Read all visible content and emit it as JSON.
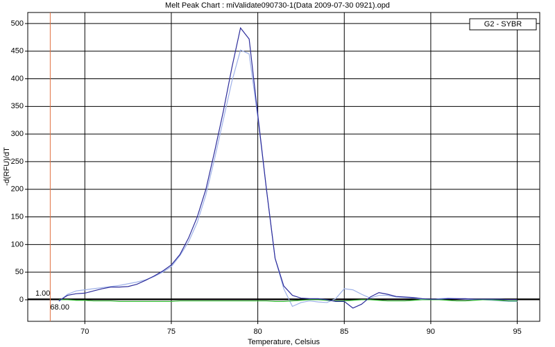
{
  "chart_data": {
    "type": "line",
    "title": "Melt Peak Chart : miValidate090730-1(Data 2009-07-30 0921).opd",
    "x_label": "Temperature, Celsius",
    "y_label": "-d(RFU)/dT",
    "legend": "G2 - SYBR",
    "xlim": [
      66.7,
      96.3
    ],
    "ylim": [
      -39,
      520
    ],
    "xticks": [
      70,
      75,
      80,
      85,
      90,
      95
    ],
    "yticks": [
      0,
      50,
      100,
      150,
      200,
      250,
      300,
      350,
      400,
      450,
      500
    ],
    "grid": true,
    "threshold": {
      "value": 1,
      "label": "1.00"
    },
    "start_line": {
      "value": 68,
      "label": "68.00"
    },
    "x": [
      68.5,
      69,
      69.5,
      70,
      70.5,
      71,
      71.5,
      72,
      72.5,
      73,
      73.5,
      74,
      74.5,
      75,
      75.5,
      76,
      76.5,
      77,
      77.5,
      78,
      78.5,
      79,
      79.5,
      80,
      80.5,
      81,
      81.5,
      82,
      82.5,
      83,
      83.5,
      84,
      84.5,
      85,
      85.5,
      86,
      86.5,
      87,
      87.5,
      88,
      88.5,
      89,
      89.5,
      90,
      90.5,
      91,
      91.5,
      92,
      92.5,
      93,
      93.5,
      94,
      94.5,
      95
    ],
    "series": [
      {
        "color": "#9db0e8",
        "values": [
          -3,
          10,
          16,
          18,
          20,
          22,
          24,
          26,
          29,
          32,
          36,
          42,
          50,
          60,
          80,
          105,
          140,
          190,
          255,
          325,
          395,
          452,
          445,
          330,
          200,
          75,
          20,
          -12,
          -5,
          -2,
          -4,
          -5,
          2,
          20,
          18,
          10,
          3,
          8,
          8,
          5,
          4,
          3,
          1,
          0,
          2,
          3,
          2,
          1,
          0,
          0,
          -1,
          -2,
          -3,
          -3
        ]
      },
      {
        "color": "#33bb33",
        "values": [
          0,
          0,
          -1,
          -1,
          -2,
          -2,
          -2,
          -3,
          -3,
          -3,
          -3,
          -3,
          -3,
          -3,
          -2,
          -2,
          -2,
          -2,
          -2,
          -2,
          -2,
          -2,
          -2,
          -2,
          -2,
          -3,
          -3,
          -2,
          -1,
          0,
          0,
          -1,
          -2,
          -2,
          -1,
          0,
          0,
          -1,
          -2,
          -2,
          -2,
          -1,
          0,
          0,
          0,
          -1,
          -2,
          -2,
          -1,
          0,
          0,
          -1,
          -2,
          -2
        ]
      },
      {
        "color": "#2b2b9a",
        "values": [
          -2,
          8,
          11,
          12,
          16,
          20,
          23,
          23,
          24,
          28,
          35,
          43,
          52,
          63,
          82,
          112,
          150,
          200,
          268,
          340,
          420,
          492,
          472,
          335,
          200,
          75,
          25,
          8,
          3,
          2,
          2,
          0,
          -3,
          -3,
          -15,
          -8,
          5,
          13,
          10,
          6,
          5,
          4,
          2,
          1,
          1,
          2,
          2,
          2,
          1,
          1,
          1,
          1,
          0,
          0
        ]
      }
    ]
  }
}
